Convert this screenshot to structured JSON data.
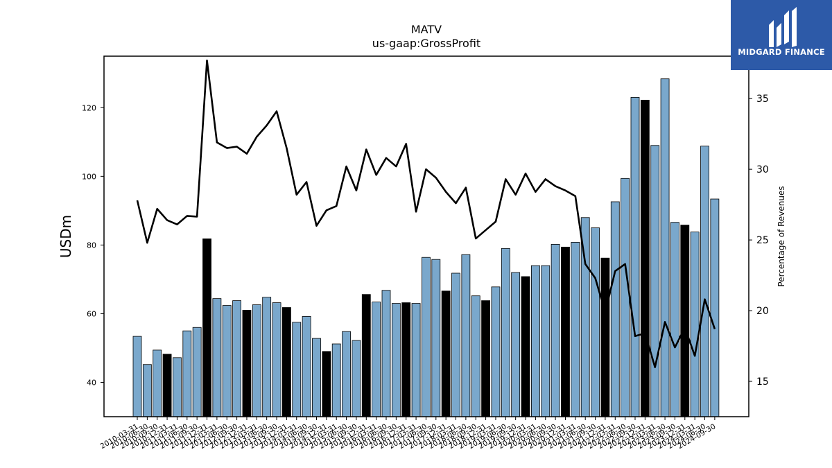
{
  "brand": {
    "name": "MIDGARD FINANCE"
  },
  "chart_data": {
    "type": "bar",
    "title": "MATV",
    "subtitle": "us-gaap:GrossProfit",
    "ylabel": "USDm",
    "y2label": "Percentage of Revenues",
    "ylim": [
      30,
      135
    ],
    "y2lim": [
      12.5,
      38
    ],
    "yticks": [
      40,
      60,
      80,
      100,
      120
    ],
    "y2ticks": [
      15,
      20,
      25,
      30,
      35
    ],
    "grid": false,
    "colors": {
      "quarterly": "#7aa8cc",
      "annual": "#000000",
      "line": "#000000"
    },
    "categories": [
      "2010-03-31",
      "2010-06-30",
      "2010-09-30",
      "2010-12-31",
      "2011-03-31",
      "2011-06-30",
      "2011-09-30",
      "2011-12-31",
      "2012-03-31",
      "2012-06-30",
      "2012-09-30",
      "2012-12-31",
      "2013-03-31",
      "2013-06-30",
      "2013-09-30",
      "2013-12-31",
      "2014-03-31",
      "2014-06-30",
      "2014-09-30",
      "2014-12-31",
      "2015-03-31",
      "2015-06-30",
      "2015-09-30",
      "2015-12-31",
      "2016-03-31",
      "2016-06-30",
      "2016-09-30",
      "2016-12-31",
      "2017-03-31",
      "2017-06-30",
      "2017-09-30",
      "2017-12-31",
      "2018-03-31",
      "2018-06-30",
      "2018-09-30",
      "2018-12-31",
      "2019-03-31",
      "2019-06-30",
      "2019-09-30",
      "2019-12-31",
      "2020-03-31",
      "2020-06-30",
      "2020-09-30",
      "2020-12-31",
      "2021-03-31",
      "2021-06-30",
      "2021-09-30",
      "2021-12-31",
      "2022-03-31",
      "2022-06-30",
      "2022-09-30",
      "2022-12-31",
      "2023-03-31",
      "2023-06-30",
      "2023-09-30",
      "2023-12-31",
      "2024-03-31",
      "2024-06-30",
      "2024-09-30"
    ],
    "series": [
      {
        "kind": "bar",
        "values": [
          53.4,
          45.2,
          49.4,
          48.2,
          47.2,
          55.0,
          56.0,
          81.8,
          64.4,
          62.4,
          63.8,
          61.0,
          62.6,
          64.8,
          63.2,
          61.8,
          57.5,
          59.2,
          52.8,
          49.0,
          51.2,
          54.8,
          52.2,
          65.6,
          63.4,
          66.8,
          63.0,
          63.2,
          63.0,
          76.4,
          75.8,
          66.6,
          71.8,
          77.2,
          65.2,
          63.8,
          67.8,
          79.0,
          72.0,
          70.8,
          74.0,
          74.0,
          80.2,
          79.4,
          80.8,
          88.0,
          85.0,
          76.2,
          92.6,
          99.4,
          123.0,
          122.2,
          109.0,
          128.4,
          86.6,
          85.8,
          83.8,
          108.8,
          93.4
        ],
        "annual": [
          false,
          false,
          false,
          true,
          false,
          false,
          false,
          true,
          false,
          false,
          false,
          true,
          false,
          false,
          false,
          true,
          false,
          false,
          false,
          true,
          false,
          false,
          false,
          true,
          false,
          false,
          false,
          true,
          false,
          false,
          false,
          true,
          false,
          false,
          false,
          true,
          false,
          false,
          false,
          true,
          false,
          false,
          false,
          true,
          false,
          false,
          false,
          true,
          false,
          false,
          false,
          true,
          false,
          false,
          false,
          true,
          false,
          false,
          false
        ]
      },
      {
        "kind": "line",
        "axis": "right",
        "values": [
          27.8,
          24.8,
          27.2,
          26.4,
          26.1,
          26.7,
          26.65,
          37.7,
          31.9,
          31.5,
          31.6,
          31.1,
          32.3,
          33.1,
          34.1,
          31.5,
          28.2,
          29.1,
          26.0,
          27.1,
          27.4,
          30.2,
          28.5,
          31.4,
          29.6,
          30.8,
          30.2,
          31.8,
          27.0,
          30.0,
          29.4,
          28.4,
          27.6,
          28.7,
          25.1,
          25.7,
          26.3,
          29.3,
          28.2,
          29.7,
          28.4,
          29.3,
          28.8,
          28.5,
          28.1,
          23.3,
          22.3,
          19.9,
          22.8,
          23.3,
          18.2,
          18.4,
          16.0,
          19.2,
          17.4,
          18.8,
          16.8,
          20.8,
          18.7
        ]
      }
    ]
  }
}
